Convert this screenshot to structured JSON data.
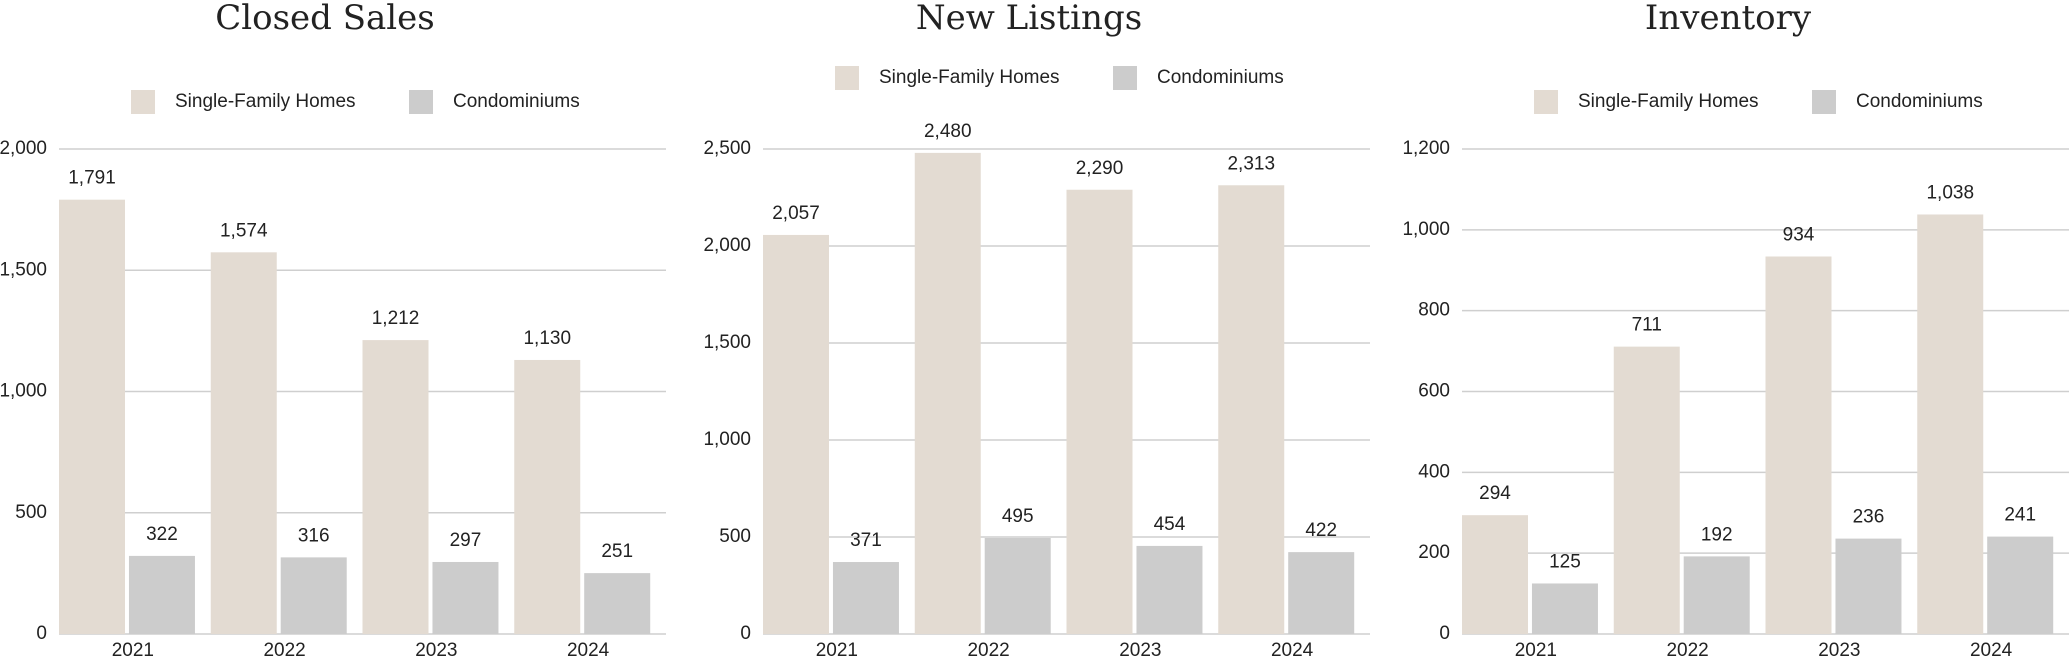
{
  "chart_data": [
    {
      "type": "bar",
      "title": "Closed Sales",
      "categories": [
        "2021",
        "2022",
        "2023",
        "2024"
      ],
      "series": [
        {
          "name": "Single-Family Homes",
          "color": "#e3dbd2",
          "values": [
            1791,
            1574,
            1212,
            1130
          ],
          "value_labels": [
            "1,791",
            "1,574",
            "1,212",
            "1,130"
          ]
        },
        {
          "name": "Condominiums",
          "color": "#cccccc",
          "values": [
            322,
            316,
            297,
            251
          ]
        }
      ],
      "ylim": [
        0,
        2000
      ],
      "yticks": [
        0,
        500,
        {
          "value": 1000,
          "label": "1,000"
        },
        {
          "value": 1500,
          "label": "1,500"
        },
        {
          "value": 2000,
          "label": "2,000"
        }
      ],
      "grid": true
    },
    {
      "type": "bar",
      "title": "New Listings",
      "categories": [
        "2021",
        "2022",
        "2023",
        "2024"
      ],
      "series": [
        {
          "name": "Single-Family Homes",
          "color": "#e3dbd2",
          "values": [
            2057,
            2480,
            2290,
            2313
          ],
          "value_labels": [
            "2,057",
            "2,480",
            "2,290",
            "2,313"
          ]
        },
        {
          "name": "Condominiums",
          "color": "#cccccc",
          "values": [
            371,
            495,
            454,
            422
          ]
        }
      ],
      "ylim": [
        0,
        2500
      ],
      "yticks": [
        0,
        500,
        {
          "value": 1000,
          "label": "1,000"
        },
        {
          "value": 1500,
          "label": "1,500"
        },
        {
          "value": 2000,
          "label": "2,000"
        },
        {
          "value": 2500,
          "label": "2,500"
        }
      ],
      "grid": true
    },
    {
      "type": "bar",
      "title": "Inventory",
      "categories": [
        "2021",
        "2022",
        "2023",
        "2024"
      ],
      "series": [
        {
          "name": "Single-Family Homes",
          "color": "#e3dbd2",
          "values": [
            294,
            711,
            934,
            1038
          ],
          "value_labels": [
            "294",
            "711",
            "934",
            "1,038"
          ]
        },
        {
          "name": "Condominiums",
          "color": "#cccccc",
          "values": [
            125,
            192,
            236,
            241
          ]
        }
      ],
      "ylim": [
        0,
        1200
      ],
      "yticks": [
        0,
        200,
        400,
        600,
        800,
        {
          "value": 1000,
          "label": "1,000"
        },
        {
          "value": 1200,
          "label": "1,200"
        }
      ],
      "grid": true
    }
  ]
}
